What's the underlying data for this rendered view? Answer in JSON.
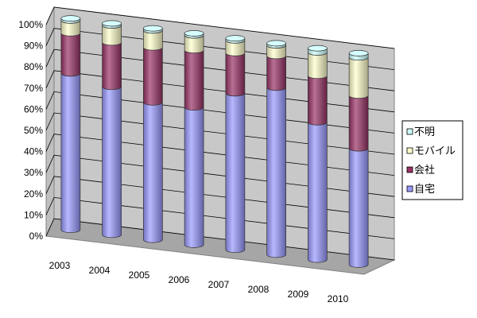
{
  "chart_data": {
    "type": "bar",
    "stacked": true,
    "stacking": "percent",
    "three_d": true,
    "categories": [
      "2003",
      "2004",
      "2005",
      "2006",
      "2007",
      "2008",
      "2009",
      "2010"
    ],
    "series": [
      {
        "name": "自宅",
        "color": "#9999ff",
        "values": [
          74,
          70,
          65,
          65,
          74,
          79,
          65,
          55
        ]
      },
      {
        "name": "会社",
        "color": "#993366",
        "values": [
          19,
          21,
          26,
          27,
          19,
          15,
          22,
          25
        ]
      },
      {
        "name": "モバイル",
        "color": "#ffffcc",
        "values": [
          6,
          8,
          8,
          7,
          6,
          5,
          11,
          18
        ]
      },
      {
        "name": "不明",
        "color": "#ccffff",
        "values": [
          1,
          1,
          1,
          1,
          1,
          1,
          2,
          2
        ]
      }
    ],
    "yticks": [
      "0%",
      "10%",
      "20%",
      "30%",
      "40%",
      "50%",
      "60%",
      "70%",
      "80%",
      "90%",
      "100%"
    ],
    "ylim": [
      0,
      100
    ],
    "grid": true,
    "legend_position": "right"
  }
}
